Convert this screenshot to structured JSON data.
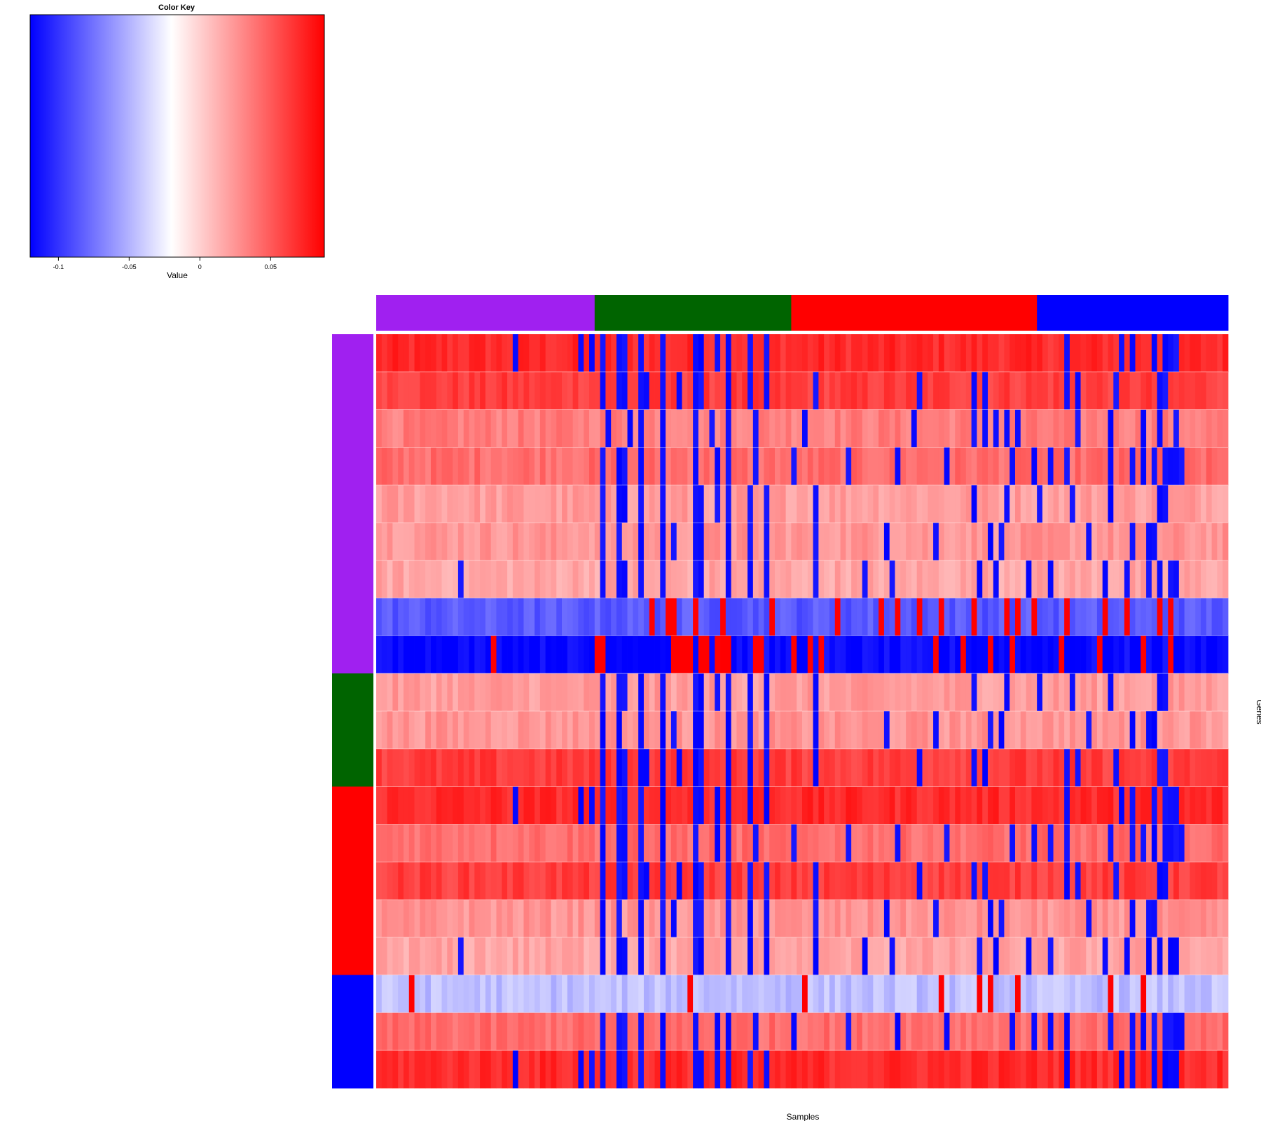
{
  "chart_data": {
    "type": "heatmap",
    "title": "",
    "xlabel": "Samples",
    "ylabel": "Genes",
    "color_key": {
      "title": "Color Key",
      "label": "Value",
      "range": [
        -0.12,
        0.088
      ],
      "ticks": [
        {
          "value": -0.1,
          "label": "-0.1"
        },
        {
          "value": -0.05,
          "label": "-0.05"
        },
        {
          "value": 0,
          "label": "0"
        },
        {
          "value": 0.05,
          "label": "0.05"
        }
      ],
      "low_color": "#0000ff",
      "mid_color": "#ffffff",
      "high_color": "#ff0000",
      "mid_value": -0.02
    },
    "col_groups": [
      {
        "color": "#a020f0",
        "count": 40
      },
      {
        "color": "#006400",
        "count": 36
      },
      {
        "color": "#ff0000",
        "count": 45
      },
      {
        "color": "#0000ff",
        "count": 35
      }
    ],
    "row_groups": [
      {
        "color": "#a020f0",
        "count": 9
      },
      {
        "color": "#006400",
        "count": 3
      },
      {
        "color": "#ff0000",
        "count": 5
      },
      {
        "color": "#0000ff",
        "count": 3
      }
    ],
    "n_samples": 156,
    "rows": [
      {
        "base": 0.07,
        "blue_cols": [
          25,
          37,
          39,
          41,
          44,
          45,
          48,
          52,
          58,
          59,
          62,
          64,
          68,
          71,
          126,
          136,
          138,
          142,
          144,
          145,
          146
        ],
        "red_cols": []
      },
      {
        "base": 0.062,
        "blue_cols": [
          41,
          44,
          45,
          48,
          49,
          52,
          55,
          58,
          59,
          64,
          68,
          71,
          80,
          99,
          109,
          111,
          126,
          128,
          135,
          143,
          144
        ],
        "red_cols": []
      },
      {
        "base": 0.035,
        "blue_cols": [
          42,
          46,
          48,
          52,
          58,
          61,
          64,
          69,
          78,
          98,
          109,
          111,
          113,
          115,
          117,
          128,
          134,
          140,
          143,
          146
        ],
        "red_cols": []
      },
      {
        "base": 0.042,
        "blue_cols": [
          41,
          44,
          45,
          48,
          52,
          58,
          62,
          64,
          69,
          76,
          86,
          95,
          104,
          116,
          120,
          123,
          126,
          134,
          138,
          140,
          142,
          144,
          145,
          146,
          147
        ],
        "red_cols": []
      },
      {
        "base": 0.022,
        "blue_cols": [
          41,
          44,
          45,
          48,
          52,
          58,
          59,
          62,
          64,
          68,
          71,
          80,
          109,
          115,
          121,
          127,
          134,
          143,
          144
        ],
        "red_cols": []
      },
      {
        "base": 0.025,
        "blue_cols": [
          41,
          44,
          48,
          52,
          54,
          58,
          59,
          64,
          68,
          71,
          80,
          93,
          102,
          112,
          114,
          130,
          138,
          141,
          142
        ],
        "red_cols": []
      },
      {
        "base": 0.018,
        "blue_cols": [
          15,
          41,
          44,
          45,
          48,
          52,
          58,
          59,
          64,
          68,
          71,
          80,
          89,
          94,
          110,
          113,
          119,
          123,
          133,
          137,
          141,
          143,
          145,
          146
        ],
        "red_cols": []
      },
      {
        "base": -0.085,
        "blue_cols": [],
        "red_cols": [
          50,
          53,
          54,
          58,
          63,
          72,
          84,
          92,
          95,
          99,
          103,
          109,
          115,
          117,
          120,
          126,
          133,
          137,
          143,
          145
        ]
      },
      {
        "base": -0.118,
        "blue_cols": [],
        "red_cols": [
          21,
          40,
          41,
          54,
          55,
          56,
          57,
          59,
          60,
          62,
          63,
          64,
          69,
          70,
          76,
          79,
          81,
          102,
          107,
          112,
          116,
          125,
          132,
          140,
          145
        ]
      },
      {
        "base": 0.022,
        "blue_cols": [
          41,
          44,
          45,
          48,
          52,
          58,
          59,
          62,
          64,
          68,
          71,
          80,
          109,
          115,
          121,
          127,
          134,
          143,
          144
        ],
        "red_cols": []
      },
      {
        "base": 0.025,
        "blue_cols": [
          41,
          44,
          48,
          52,
          54,
          58,
          59,
          64,
          68,
          71,
          80,
          93,
          102,
          112,
          114,
          130,
          138,
          141,
          142
        ],
        "red_cols": []
      },
      {
        "base": 0.062,
        "blue_cols": [
          41,
          44,
          45,
          48,
          49,
          52,
          55,
          58,
          59,
          64,
          68,
          71,
          80,
          99,
          109,
          111,
          126,
          128,
          135,
          143,
          144
        ],
        "red_cols": []
      },
      {
        "base": 0.07,
        "blue_cols": [
          25,
          37,
          39,
          41,
          44,
          45,
          48,
          52,
          58,
          59,
          62,
          64,
          68,
          71,
          126,
          136,
          138,
          142,
          144,
          145,
          146
        ],
        "red_cols": []
      },
      {
        "base": 0.042,
        "blue_cols": [
          41,
          44,
          45,
          48,
          52,
          58,
          62,
          64,
          69,
          76,
          86,
          95,
          104,
          116,
          120,
          123,
          126,
          134,
          138,
          140,
          142,
          144,
          145,
          146,
          147
        ],
        "red_cols": []
      },
      {
        "base": 0.062,
        "blue_cols": [
          41,
          44,
          45,
          48,
          49,
          52,
          55,
          58,
          59,
          64,
          68,
          71,
          80,
          99,
          109,
          111,
          126,
          128,
          135,
          143,
          144
        ],
        "red_cols": []
      },
      {
        "base": 0.025,
        "blue_cols": [
          41,
          44,
          48,
          52,
          54,
          58,
          59,
          64,
          68,
          71,
          80,
          93,
          102,
          112,
          114,
          130,
          138,
          141,
          142
        ],
        "red_cols": []
      },
      {
        "base": 0.018,
        "blue_cols": [
          15,
          41,
          44,
          45,
          48,
          52,
          58,
          59,
          64,
          68,
          71,
          80,
          89,
          94,
          110,
          113,
          119,
          123,
          133,
          137,
          141,
          143,
          145,
          146
        ],
        "red_cols": []
      },
      {
        "base": -0.045,
        "blue_cols": [],
        "red_cols": [
          6,
          57,
          78,
          103,
          110,
          112,
          117,
          134,
          140
        ]
      },
      {
        "base": 0.042,
        "blue_cols": [
          41,
          44,
          45,
          48,
          52,
          58,
          62,
          64,
          69,
          76,
          86,
          95,
          104,
          116,
          120,
          123,
          126,
          134,
          138,
          140,
          142,
          144,
          145,
          146,
          147
        ],
        "red_cols": []
      },
      {
        "base": 0.07,
        "blue_cols": [
          25,
          37,
          39,
          41,
          44,
          45,
          48,
          52,
          58,
          59,
          62,
          64,
          68,
          71,
          126,
          136,
          138,
          142,
          144,
          145,
          146
        ],
        "red_cols": []
      }
    ]
  }
}
